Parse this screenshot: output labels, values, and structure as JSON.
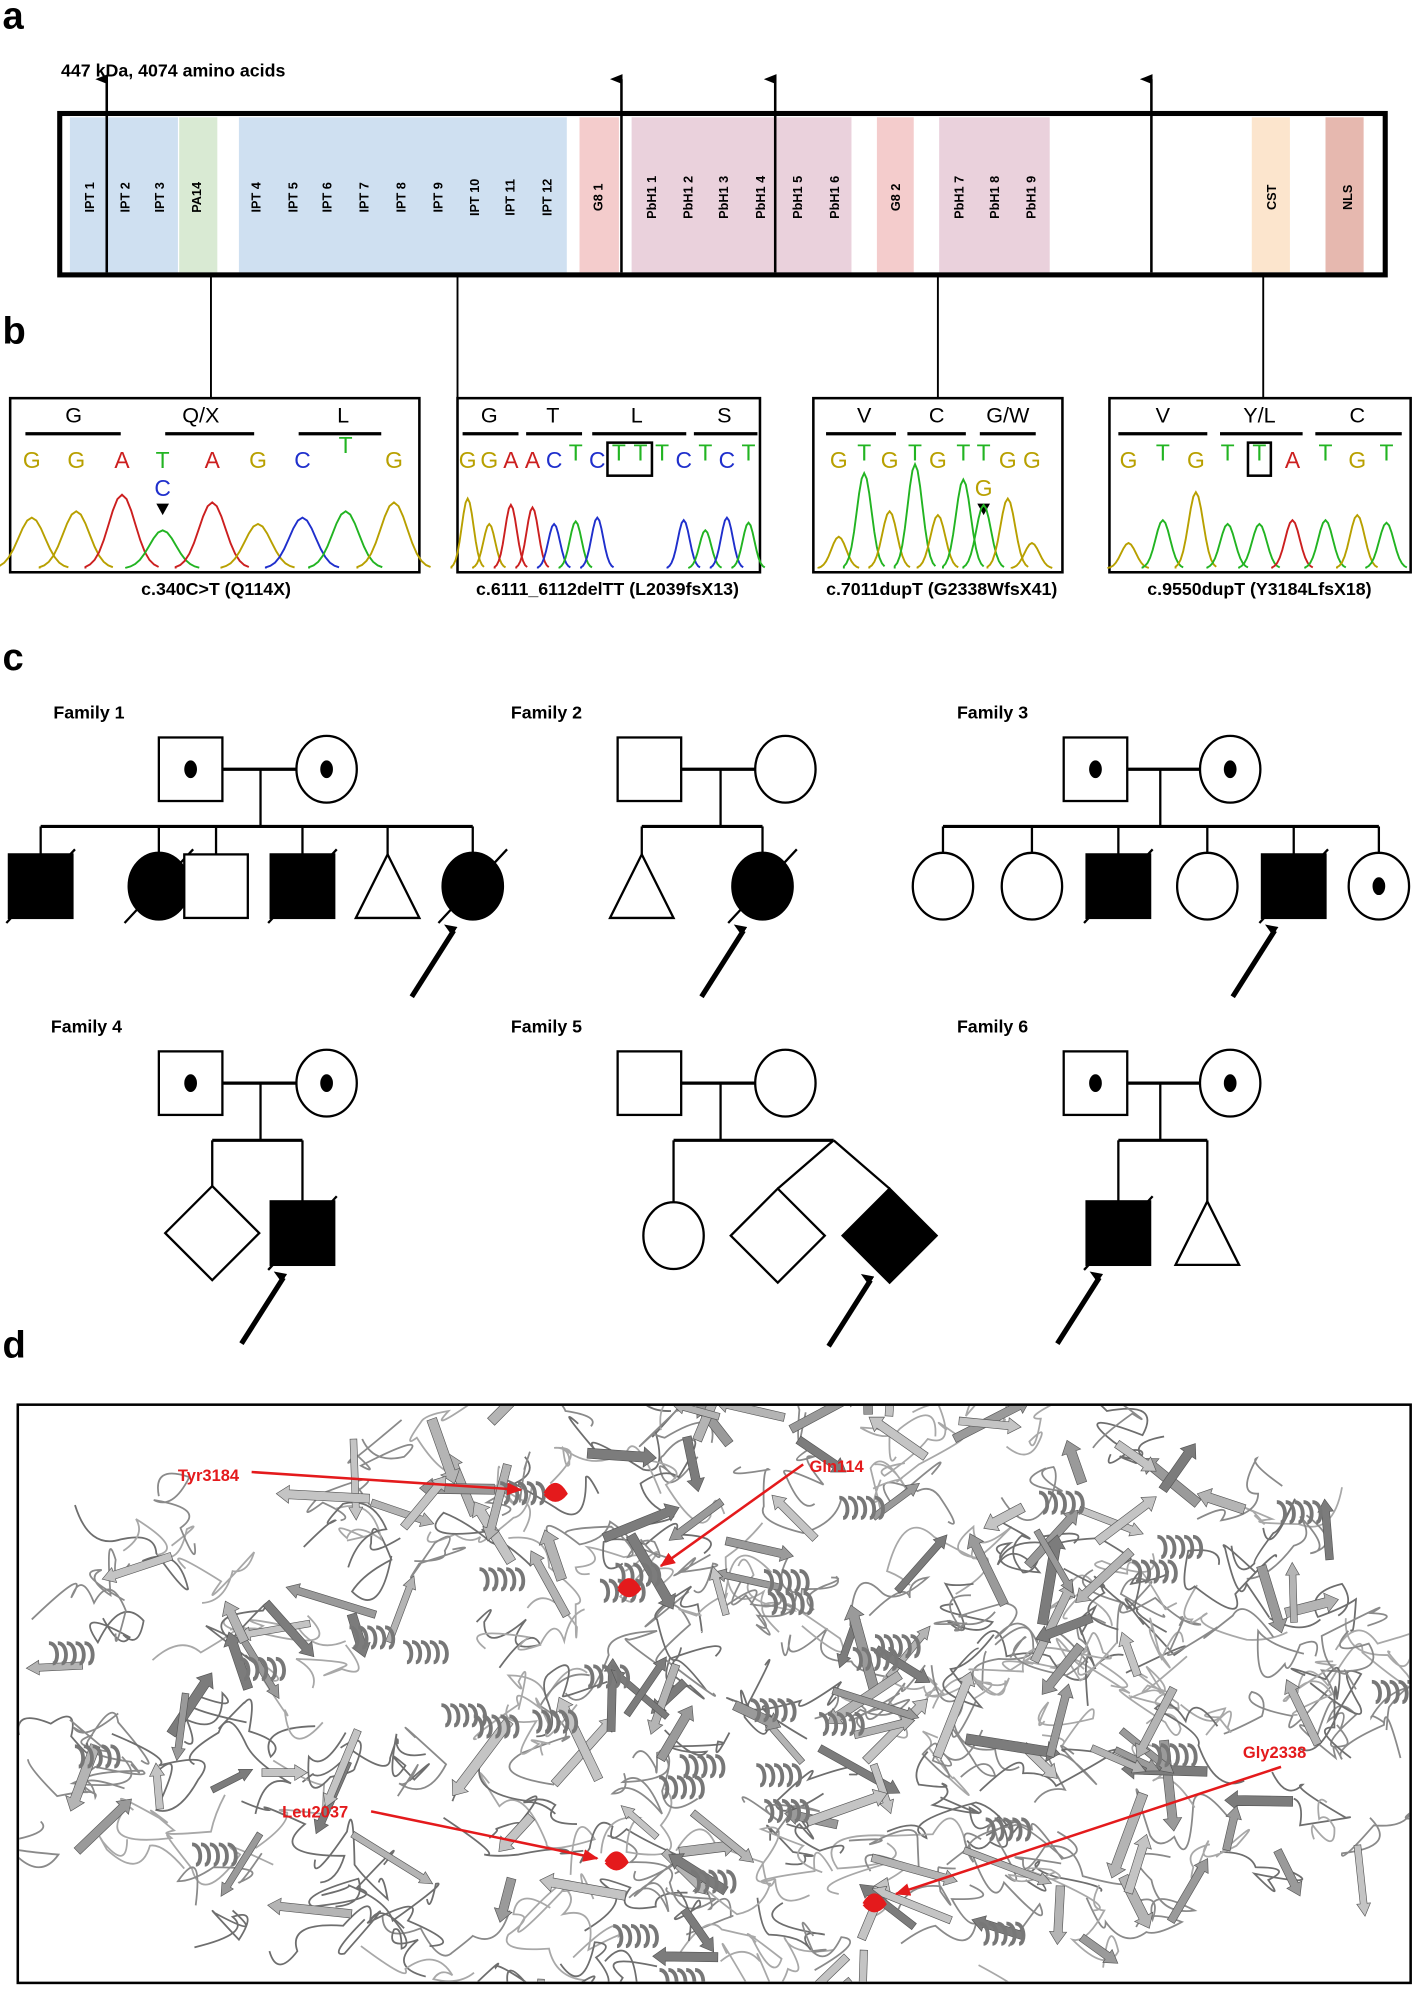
{
  "panels": {
    "a": "a",
    "b": "b",
    "c": "c",
    "d": "d"
  },
  "protein": {
    "summary": "447 kDa, 4074 amino acids",
    "domains": [
      {
        "label": "IPT 1",
        "color": "#cfe0f1"
      },
      {
        "label": "IPT 2",
        "color": "#cfe0f1"
      },
      {
        "label": "IPT 3",
        "color": "#cfe0f1"
      },
      {
        "label": "PA14",
        "color": "#d9ead3"
      },
      {
        "label": "IPT 4",
        "color": "#cfe0f1"
      },
      {
        "label": "IPT 5",
        "color": "#cfe0f1"
      },
      {
        "label": "IPT 6",
        "color": "#cfe0f1"
      },
      {
        "label": "IPT 7",
        "color": "#cfe0f1"
      },
      {
        "label": "IPT 8",
        "color": "#cfe0f1"
      },
      {
        "label": "IPT 9",
        "color": "#cfe0f1"
      },
      {
        "label": "IPT 10",
        "color": "#cfe0f1"
      },
      {
        "label": "IPT 11",
        "color": "#cfe0f1"
      },
      {
        "label": "IPT 12",
        "color": "#cfe0f1"
      },
      {
        "label": "G8 1",
        "color": "#f4cccc"
      },
      {
        "label": "PbH1 1",
        "color": "#ead1dc"
      },
      {
        "label": "PbH1 2",
        "color": "#ead1dc"
      },
      {
        "label": "PbH1 3",
        "color": "#ead1dc"
      },
      {
        "label": "PbH1 4",
        "color": "#ead1dc"
      },
      {
        "label": "PbH1 5",
        "color": "#ead1dc"
      },
      {
        "label": "PbH1 6",
        "color": "#ead1dc"
      },
      {
        "label": "G8 2",
        "color": "#f4cccc"
      },
      {
        "label": "PbH1 7",
        "color": "#ead1dc"
      },
      {
        "label": "PbH1 8",
        "color": "#ead1dc"
      },
      {
        "label": "PbH1 9",
        "color": "#ead1dc"
      },
      {
        "label": "CST",
        "color": "#fce5cd"
      },
      {
        "label": "NLS",
        "color": "#e6b8af"
      }
    ]
  },
  "base_colors": {
    "G": "#b8a000",
    "A": "#cc1f1f",
    "T": "#22b422",
    "C": "#1f2fcc"
  },
  "variants": [
    {
      "amino_acids": [
        "G",
        "Q/X",
        "L"
      ],
      "bases": [
        "G",
        "G",
        "A",
        "T",
        "A",
        "G",
        "C",
        "T",
        "G"
      ],
      "alt_base": "C",
      "caption": "c.340C>T (Q114X)"
    },
    {
      "amino_acids": [
        "G",
        "T",
        "L",
        "S"
      ],
      "bases": [
        "G",
        "G",
        "A",
        "A",
        "C",
        "T",
        "C",
        "T",
        "T",
        "T",
        "C",
        "T",
        "C",
        "T"
      ],
      "caption": "c.6111_6112delTT (L2039fsX13)"
    },
    {
      "amino_acids": [
        "V",
        "C",
        "G/W"
      ],
      "bases": [
        "G",
        "T",
        "G",
        "T",
        "G",
        "T",
        "T",
        "G",
        "G"
      ],
      "alt_base": "G",
      "caption": "c.7011dupT (G2338WfsX41)"
    },
    {
      "amino_acids": [
        "V",
        "Y/L",
        "C"
      ],
      "bases": [
        "G",
        "T",
        "G",
        "T",
        "T",
        "A",
        "T",
        "G",
        "T"
      ],
      "caption": "c.9550dupT (Y3184LfsX18)"
    }
  ],
  "families": [
    {
      "name": "Family 1",
      "parents": [
        "carrier",
        "carrier"
      ],
      "children": [
        {
          "sex": "male",
          "status": "affected",
          "deceased": true
        },
        {
          "sex": "female",
          "status": "affected",
          "deceased": true
        },
        {
          "sex": "male",
          "status": "unaffected"
        },
        {
          "sex": "male",
          "status": "affected",
          "deceased": true
        },
        {
          "sex": "pregnancy-loss",
          "status": "unaffected"
        },
        {
          "sex": "female",
          "status": "affected",
          "deceased": true,
          "proband": true
        }
      ]
    },
    {
      "name": "Family 2",
      "parents": [
        "unaffected",
        "unaffected"
      ],
      "children": [
        {
          "sex": "pregnancy-loss",
          "status": "unaffected"
        },
        {
          "sex": "female",
          "status": "affected",
          "deceased": true,
          "proband": true
        }
      ]
    },
    {
      "name": "Family 3",
      "parents": [
        "carrier",
        "carrier"
      ],
      "children": [
        {
          "sex": "female",
          "status": "unaffected"
        },
        {
          "sex": "female",
          "status": "unaffected"
        },
        {
          "sex": "male",
          "status": "affected",
          "deceased": true
        },
        {
          "sex": "female",
          "status": "unaffected"
        },
        {
          "sex": "male",
          "status": "affected",
          "deceased": true,
          "proband": true
        },
        {
          "sex": "female",
          "status": "carrier"
        }
      ]
    },
    {
      "name": "Family 4",
      "parents": [
        "carrier",
        "carrier"
      ],
      "children": [
        {
          "sex": "unknown",
          "status": "unaffected"
        },
        {
          "sex": "male",
          "status": "affected",
          "deceased": true,
          "proband": true
        }
      ]
    },
    {
      "name": "Family 5",
      "parents": [
        "unaffected",
        "unaffected"
      ],
      "children": [
        {
          "sex": "female",
          "status": "unaffected"
        },
        {
          "sex": "unknown",
          "status": "unaffected",
          "twin": true
        },
        {
          "sex": "unknown",
          "status": "affected",
          "twin": true,
          "proband": true
        }
      ]
    },
    {
      "name": "Family 6",
      "parents": [
        "carrier",
        "carrier"
      ],
      "children": [
        {
          "sex": "male",
          "status": "affected",
          "deceased": true,
          "proband": true
        },
        {
          "sex": "pregnancy-loss",
          "status": "unaffected"
        }
      ]
    }
  ],
  "structure_labels": [
    "Tyr3184",
    "Gln114",
    "Leu2037",
    "Gly2338"
  ],
  "highlight_color": "#e41a1c"
}
